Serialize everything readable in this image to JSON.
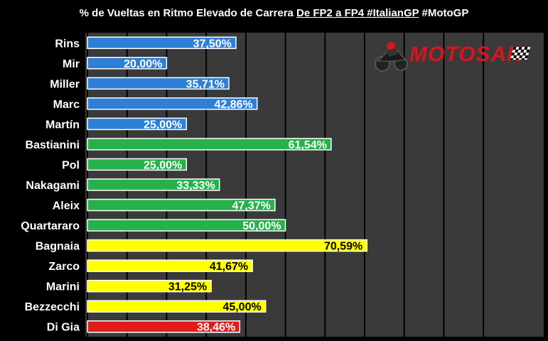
{
  "title": {
    "prefix": "% de Vueltas en Ritmo Elevado de Carrera ",
    "underlined": "De FP2 a FP4 #ItalianGP",
    "suffix": " #MotoGP"
  },
  "logo": {
    "text": "MOTOSAN",
    "icon": "motorbike-rider-icon"
  },
  "colors": {
    "background": "#000000",
    "plot_area": "#3a3a3a",
    "gridline": "#000000",
    "blue": "#2e7fd6",
    "green": "#27b14a",
    "yellow": "#ffff00",
    "red": "#e11b1b"
  },
  "chart_data": {
    "type": "bar",
    "orientation": "horizontal",
    "xlim": [
      0,
      100
    ],
    "grid": true,
    "categories": [
      "Rins",
      "Mir",
      "Miller",
      "Marc",
      "Martín",
      "Bastianini",
      "Pol",
      "Nakagami",
      "Aleix",
      "Quartararo",
      "Bagnaia",
      "Zarco",
      "Marini",
      "Bezzecchi",
      "Di Gia"
    ],
    "values": [
      37.5,
      20.0,
      35.71,
      42.86,
      25.0,
      61.54,
      25.0,
      33.33,
      47.37,
      50.0,
      70.59,
      41.67,
      31.25,
      45.0,
      38.46
    ],
    "labels": [
      "37,50%",
      "20,00%",
      "35,71%",
      "42,86%",
      "25,00%",
      "61,54%",
      "25,00%",
      "33,33%",
      "47,37%",
      "50,00%",
      "70,59%",
      "41,67%",
      "31,25%",
      "45,00%",
      "38,46%"
    ],
    "bar_colors": [
      "blue",
      "blue",
      "blue",
      "blue",
      "blue",
      "green",
      "green",
      "green",
      "green",
      "green",
      "yellow",
      "yellow",
      "yellow",
      "yellow",
      "red"
    ]
  }
}
